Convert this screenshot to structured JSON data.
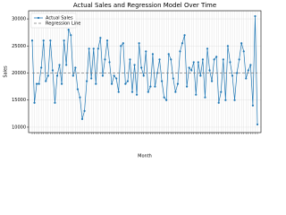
{
  "chart_data": {
    "type": "line",
    "title": "Actual Sales and Regression Model Over Time",
    "x_label": "Month",
    "y_label": "Sales",
    "grid": true,
    "legend": "upper left",
    "categories": [
      null,
      null,
      null,
      null,
      null,
      null,
      null,
      null,
      null,
      null,
      null,
      null,
      null,
      null,
      null,
      null,
      null,
      null,
      null,
      null,
      null,
      null,
      null,
      null,
      null,
      null,
      null,
      null,
      null,
      null,
      null,
      null,
      null,
      null,
      null,
      null,
      null,
      null,
      null,
      null,
      null,
      null,
      null,
      null,
      null,
      null,
      null,
      null,
      null,
      null,
      null,
      null,
      null,
      null,
      null,
      null,
      null,
      null,
      null,
      null,
      null,
      null,
      null,
      null,
      null,
      null,
      null,
      null,
      null,
      null,
      null,
      null,
      null,
      null,
      null,
      null,
      null,
      null,
      null,
      null,
      null,
      null,
      null,
      null,
      null,
      null,
      null,
      null,
      null,
      null,
      null,
      null,
      null,
      null,
      null,
      null,
      null,
      null,
      null,
      null
    ],
    "series": [
      {
        "name": "Actual Sales",
        "color": "#1f77b4",
        "style": "solid",
        "markers": true,
        "values": [
          26000,
          14500,
          18000,
          18000,
          21000,
          26000,
          18500,
          19500,
          26000,
          20500,
          14500,
          19500,
          21500,
          18000,
          26000,
          21500,
          28000,
          27000,
          19500,
          21000,
          17000,
          15500,
          11500,
          13000,
          18500,
          24500,
          19000,
          24500,
          18000,
          24500,
          26500,
          19500,
          22500,
          26000,
          22000,
          18000,
          19500,
          19000,
          16500,
          25000,
          25500,
          18000,
          18500,
          22500,
          16500,
          21500,
          16000,
          25500,
          21000,
          19500,
          24000,
          16500,
          17500,
          23500,
          17500,
          20000,
          22500,
          18500,
          15500,
          15000,
          23500,
          22500,
          19000,
          16500,
          18000,
          24000,
          25500,
          27000,
          17500,
          21000,
          20500,
          22000,
          16000,
          22000,
          19500,
          22500,
          15500,
          24500,
          20500,
          18500,
          22500,
          23000,
          14500,
          16500,
          22500,
          15000,
          25000,
          22000,
          19500,
          15000,
          20000,
          22500,
          25500,
          24000,
          19000,
          20500,
          21500,
          14000,
          30500,
          10500
        ]
      },
      {
        "name": "Regression Line",
        "color": "#7f7f7f",
        "style": "dashed",
        "markers": false,
        "values": [
          20000,
          20000,
          20000,
          20000,
          20000,
          20000,
          20000,
          20000,
          20000,
          20000,
          20000,
          20000,
          20000,
          20000,
          20000,
          20000,
          20000,
          20000,
          20000,
          20000,
          20000,
          20000,
          20000,
          20000,
          20000,
          20000,
          20000,
          20000,
          20000,
          20000,
          20000,
          20000,
          20000,
          20000,
          20000,
          20000,
          20000,
          20000,
          20000,
          20000,
          20000,
          20000,
          20000,
          20000,
          20000,
          20000,
          20000,
          20000,
          20000,
          20000,
          20000,
          20000,
          20000,
          20000,
          20000,
          20000,
          20000,
          20000,
          20000,
          20000,
          20000,
          20000,
          20000,
          20000,
          20000,
          20000,
          20000,
          20000,
          20000,
          20000,
          20000,
          20000,
          20000,
          20000,
          20000,
          20000,
          20000,
          20000,
          20000,
          20000,
          20000,
          20000,
          20000,
          20000,
          20000,
          20000,
          20000,
          20000,
          20000,
          20000,
          20000,
          20000,
          20000,
          20000,
          20000,
          20000,
          20000,
          20000,
          20000,
          20000
        ]
      }
    ],
    "ylim": [
      9000,
      31500
    ],
    "yticks": [
      10000,
      15000,
      20000,
      25000,
      30000
    ]
  }
}
